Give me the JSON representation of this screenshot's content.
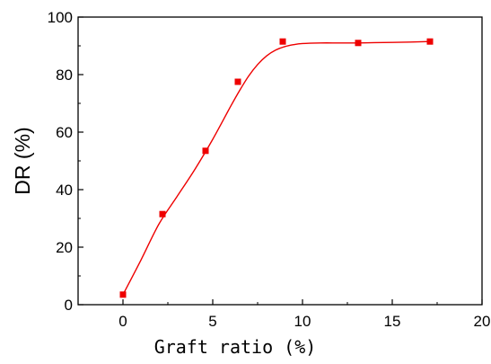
{
  "chart_data": {
    "type": "scatter",
    "xlabel": "Graft ratio (%)",
    "ylabel": "DR (%)",
    "xlim": [
      -2.5,
      20
    ],
    "ylim": [
      0,
      100
    ],
    "x_ticks": [
      "0",
      "5",
      "10",
      "15",
      "20"
    ],
    "y_ticks": [
      "0",
      "20",
      "40",
      "60",
      "80",
      "100"
    ],
    "grid": false,
    "legend": "none",
    "series": [
      {
        "color": "#ee0000",
        "marker": "square",
        "x": [
          0,
          2.2,
          4.6,
          6.4,
          8.9,
          13.1,
          17.1
        ],
        "y": [
          3.5,
          31.5,
          53.5,
          77.5,
          91.5,
          91.0,
          91.5
        ]
      }
    ],
    "fit_curve": {
      "color": "#ee0000",
      "x": [
        0,
        1,
        2,
        3,
        4,
        5,
        6,
        6.5,
        7,
        7.5,
        8,
        8.5,
        9,
        9.5,
        10,
        11,
        12,
        13,
        14,
        15,
        16,
        17.1
      ],
      "y": [
        3.5,
        15.5,
        28.0,
        37.5,
        47.0,
        57.5,
        69.0,
        74.5,
        79.5,
        83.5,
        86.5,
        88.5,
        89.7,
        90.4,
        90.8,
        91.0,
        91.0,
        91.0,
        91.1,
        91.2,
        91.3,
        91.5
      ]
    }
  }
}
